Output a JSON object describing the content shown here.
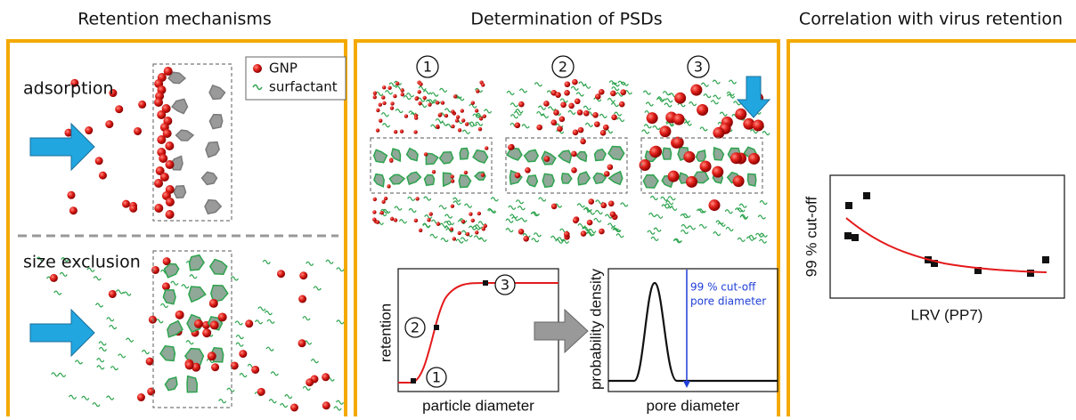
{
  "headers": [
    "Retention mechanisms",
    "Determination of PSDs",
    "Correlation with virus retention"
  ],
  "mechanisms": {
    "adsorption": "adsorption",
    "size_exclusion": "size exclusion",
    "legend": [
      "GNP",
      "surfactant"
    ]
  },
  "psd": {
    "steps": [
      "1",
      "2",
      "3"
    ],
    "retention_plot": {
      "y_label": "retention",
      "x_label": "particle diameter",
      "markers": [
        "1",
        "2",
        "3"
      ]
    },
    "density_plot": {
      "y_label": "probability density",
      "x_label": "pore diameter",
      "annotation": [
        "99 % cut-off",
        "pore diameter"
      ]
    }
  },
  "correlation": {
    "y_label": "99 % cut-off",
    "x_label": "LRV (PP7)"
  }
}
